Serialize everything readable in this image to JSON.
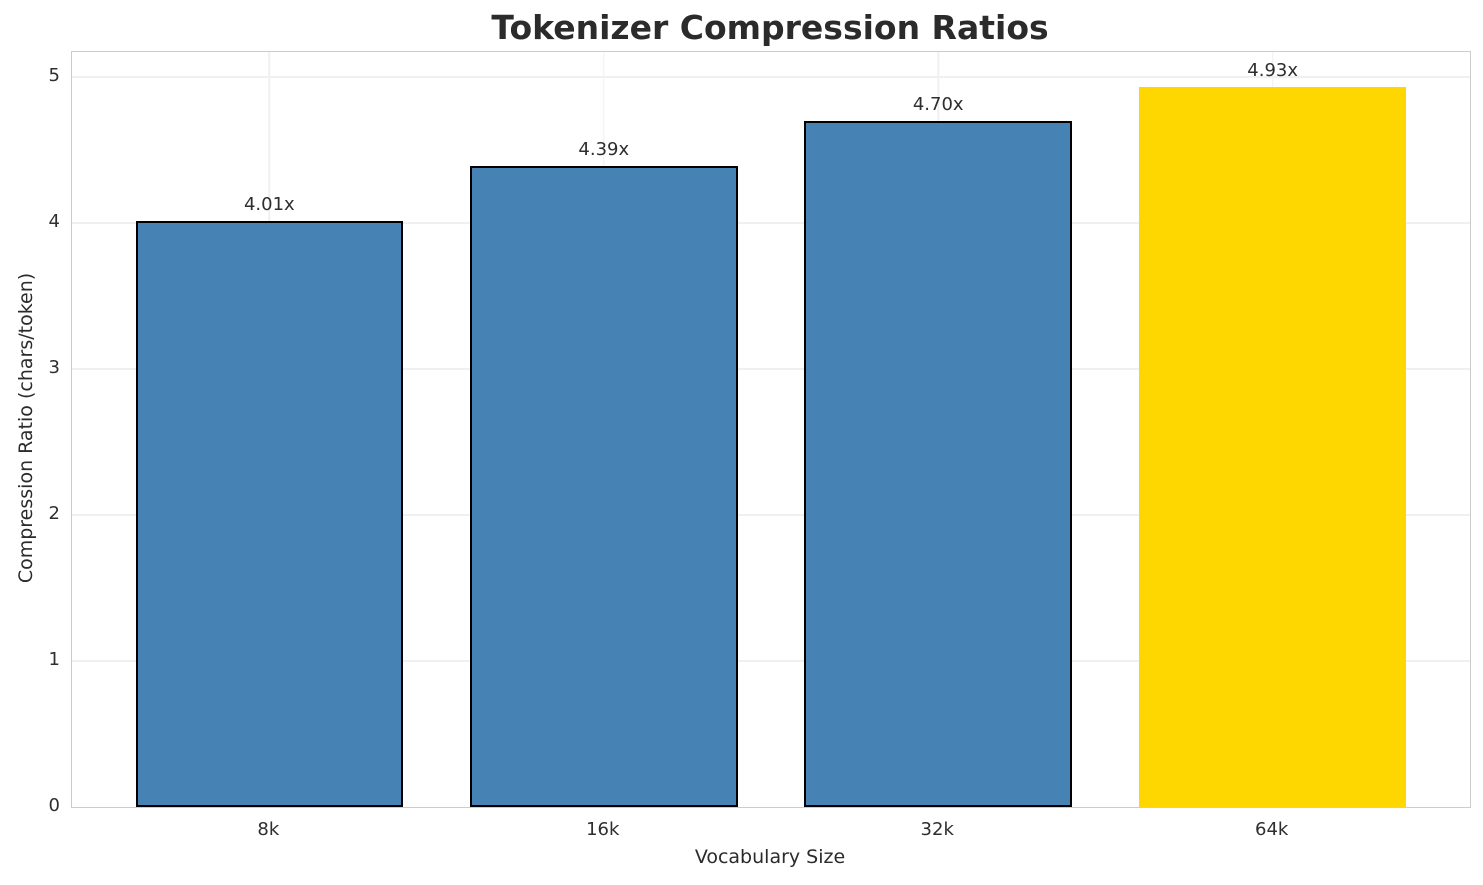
{
  "chart_data": {
    "type": "bar",
    "title": "Tokenizer Compression Ratios",
    "xlabel": "Vocabulary Size",
    "ylabel": "Compression Ratio (chars/token)",
    "categories": [
      "8k",
      "16k",
      "32k",
      "64k"
    ],
    "values": [
      4.01,
      4.39,
      4.7,
      4.93
    ],
    "bar_labels": [
      "4.01x",
      "4.39x",
      "4.70x",
      "4.93x"
    ],
    "bar_colors": [
      "#4682B4",
      "#4682B4",
      "#4682B4",
      "#FFD700"
    ],
    "bar_edge_colors": [
      "#000000",
      "#000000",
      "#000000",
      "none"
    ],
    "yticks": [
      0,
      1,
      2,
      3,
      4,
      5
    ],
    "ylim": [
      0,
      5.17
    ],
    "bar_width_fraction": 0.8,
    "grid": "horizontal and vertical, very light gray, behind bars",
    "legend_position": "none"
  },
  "colors": {
    "primary_bar": "#4682B4",
    "highlight_bar": "#FFD700",
    "bar_edge": "#000000",
    "spine": "#cccccc",
    "gridline": "#f0f0f0",
    "title_text": "#2b2b2b",
    "tick_text": "#2e2e2e",
    "background": "#ffffff"
  }
}
